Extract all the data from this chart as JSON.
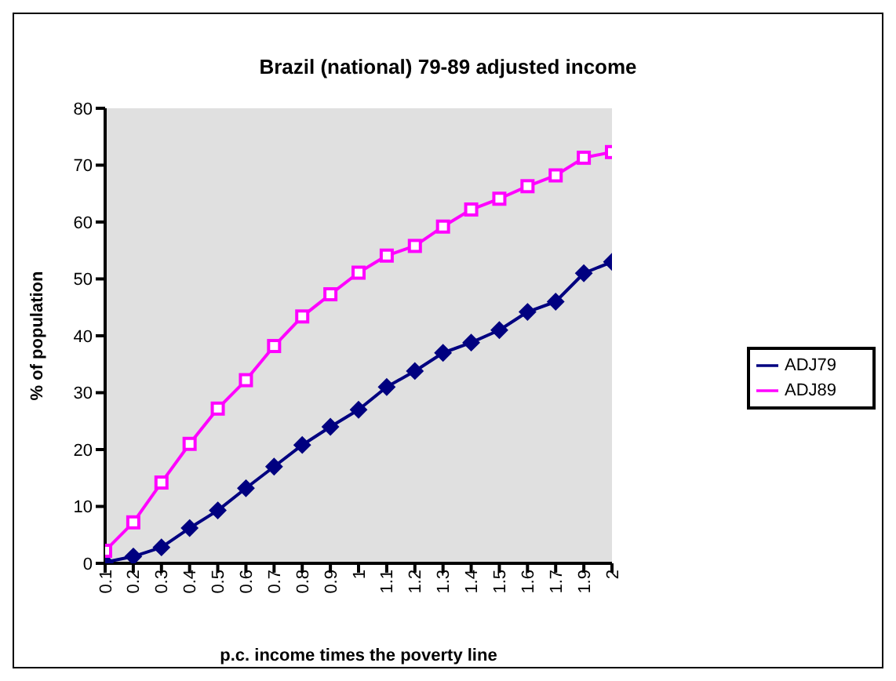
{
  "chart_data": {
    "type": "line",
    "title": "Brazil (national) 79-89 adjusted income",
    "xlabel": "p.c. income times the poverty line",
    "ylabel": "% of population",
    "categories": [
      "0.1",
      "0.2",
      "0.3",
      "0.4",
      "0.5",
      "0.6",
      "0.7",
      "0.8",
      "0.9",
      "1",
      "1.1",
      "1.2",
      "1.3",
      "1.4",
      "1.5",
      "1.6",
      "1.7",
      "1.9",
      "2"
    ],
    "series": [
      {
        "name": "ADJ79",
        "color": "#000080",
        "marker": "diamond",
        "values": [
          0.2,
          1.2,
          2.8,
          6.2,
          9.3,
          13.2,
          17,
          20.8,
          24,
          27,
          31,
          33.8,
          37,
          38.8,
          41,
          44.2,
          46,
          51,
          53
        ]
      },
      {
        "name": "ADJ89",
        "color": "#ff00ff",
        "marker": "square",
        "values": [
          2.2,
          7.2,
          14.2,
          21,
          27.2,
          32.2,
          38.2,
          43.4,
          47.3,
          51.1,
          54.1,
          55.8,
          59.2,
          62.2,
          64.1,
          66.3,
          68.2,
          71.3,
          72.3
        ]
      }
    ],
    "ylim": [
      0,
      80
    ],
    "yticks": [
      0,
      10,
      20,
      30,
      40,
      50,
      60,
      70,
      80
    ],
    "grid": false,
    "legend": "right",
    "line_style": "solid"
  }
}
